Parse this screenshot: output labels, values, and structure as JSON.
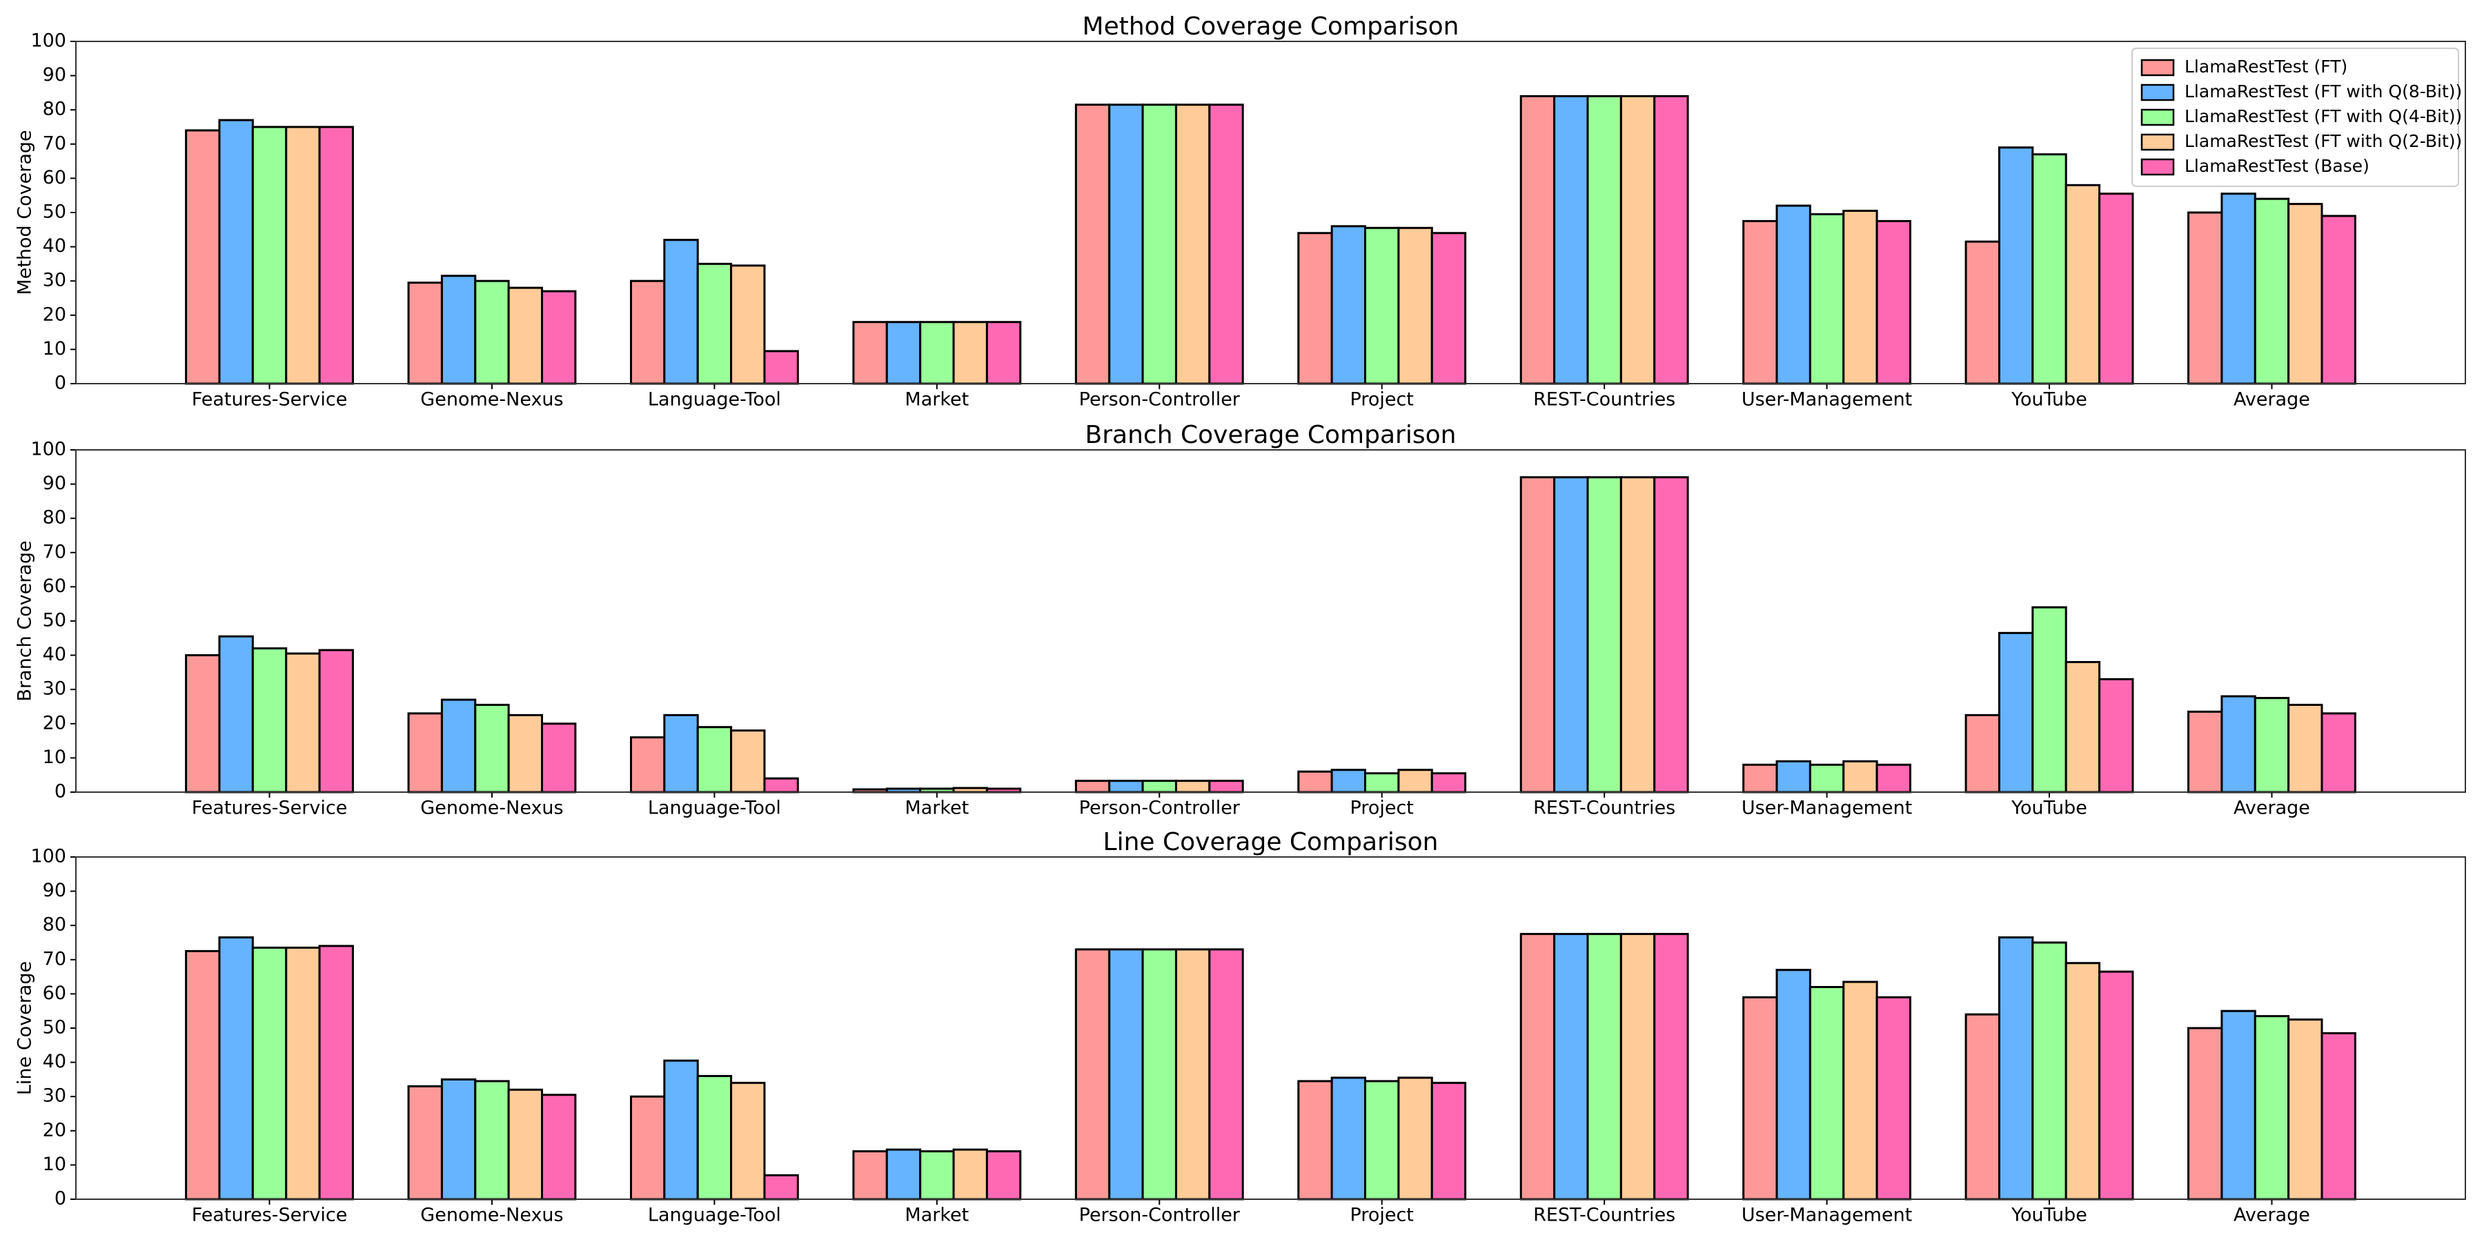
{
  "chart_data": [
    {
      "type": "bar",
      "title": "Method Coverage Comparison",
      "ylabel": "Method Coverage",
      "categories": [
        "Features-Service",
        "Genome-Nexus",
        "Language-Tool",
        "Market",
        "Person-Controller",
        "Project",
        "REST-Countries",
        "User-Management",
        "YouTube",
        "Average"
      ],
      "series": [
        {
          "name": "LlamaRestTest (FT)",
          "color": "#ff9999",
          "values": [
            74,
            29.5,
            30,
            18,
            81.5,
            44,
            84,
            47.5,
            41.5,
            50
          ]
        },
        {
          "name": "LlamaRestTest (FT with Q(8-Bit))",
          "color": "#66b3ff",
          "values": [
            77,
            31.5,
            42,
            18,
            81.5,
            46,
            84,
            52,
            69,
            55.5
          ]
        },
        {
          "name": "LlamaRestTest (FT with Q(4-Bit))",
          "color": "#99ff99",
          "values": [
            75,
            30,
            35,
            18,
            81.5,
            45.5,
            84,
            49.5,
            67,
            54
          ]
        },
        {
          "name": "LlamaRestTest (FT with Q(2-Bit))",
          "color": "#ffcc99",
          "values": [
            75,
            28,
            34.5,
            18,
            81.5,
            45.5,
            84,
            50.5,
            58,
            52.5
          ]
        },
        {
          "name": "LlamaRestTest (Base)",
          "color": "#ff69b4",
          "values": [
            75,
            27,
            9.5,
            18,
            81.5,
            44,
            84,
            47.5,
            55.5,
            49
          ]
        }
      ],
      "ylim": [
        0,
        100
      ],
      "yticks": [
        0,
        10,
        20,
        30,
        40,
        50,
        60,
        70,
        80,
        90,
        100
      ],
      "legend": "upper right"
    },
    {
      "type": "bar",
      "title": "Branch Coverage Comparison",
      "ylabel": "Branch Coverage",
      "categories": [
        "Features-Service",
        "Genome-Nexus",
        "Language-Tool",
        "Market",
        "Person-Controller",
        "Project",
        "REST-Countries",
        "User-Management",
        "YouTube",
        "Average"
      ],
      "series": [
        {
          "color": "#ff9999",
          "values": [
            40,
            23,
            16,
            0.8,
            3.3,
            6,
            92,
            8,
            22.5,
            23.5
          ]
        },
        {
          "color": "#66b3ff",
          "values": [
            45.5,
            27,
            22.5,
            1,
            3.3,
            6.5,
            92,
            9,
            46.5,
            28
          ]
        },
        {
          "color": "#99ff99",
          "values": [
            42,
            25.5,
            19,
            1,
            3.3,
            5.5,
            92,
            8,
            54,
            27.5
          ]
        },
        {
          "color": "#ffcc99",
          "values": [
            40.5,
            22.5,
            18,
            1.2,
            3.3,
            6.5,
            92,
            9,
            38,
            25.5
          ]
        },
        {
          "color": "#ff69b4",
          "values": [
            41.5,
            20,
            4,
            1,
            3.3,
            5.5,
            92,
            8,
            33,
            23
          ]
        }
      ],
      "ylim": [
        0,
        100
      ],
      "yticks": [
        0,
        10,
        20,
        30,
        40,
        50,
        60,
        70,
        80,
        90,
        100
      ]
    },
    {
      "type": "bar",
      "title": "Line Coverage Comparison",
      "ylabel": "Line Coverage",
      "categories": [
        "Features-Service",
        "Genome-Nexus",
        "Language-Tool",
        "Market",
        "Person-Controller",
        "Project",
        "REST-Countries",
        "User-Management",
        "YouTube",
        "Average"
      ],
      "series": [
        {
          "color": "#ff9999",
          "values": [
            72.5,
            33,
            30,
            14,
            73,
            34.5,
            77.5,
            59,
            54,
            50
          ]
        },
        {
          "color": "#66b3ff",
          "values": [
            76.5,
            35,
            40.5,
            14.5,
            73,
            35.5,
            77.5,
            67,
            76.5,
            55
          ]
        },
        {
          "color": "#99ff99",
          "values": [
            73.5,
            34.5,
            36,
            14,
            73,
            34.5,
            77.5,
            62,
            75,
            53.5
          ]
        },
        {
          "color": "#ffcc99",
          "values": [
            73.5,
            32,
            34,
            14.5,
            73,
            35.5,
            77.5,
            63.5,
            69,
            52.5
          ]
        },
        {
          "color": "#ff69b4",
          "values": [
            74,
            30.5,
            7,
            14,
            73,
            34,
            77.5,
            59,
            66.5,
            48.5
          ]
        }
      ],
      "ylim": [
        0,
        100
      ],
      "yticks": [
        0,
        10,
        20,
        30,
        40,
        50,
        60,
        70,
        80,
        90,
        100
      ]
    }
  ]
}
